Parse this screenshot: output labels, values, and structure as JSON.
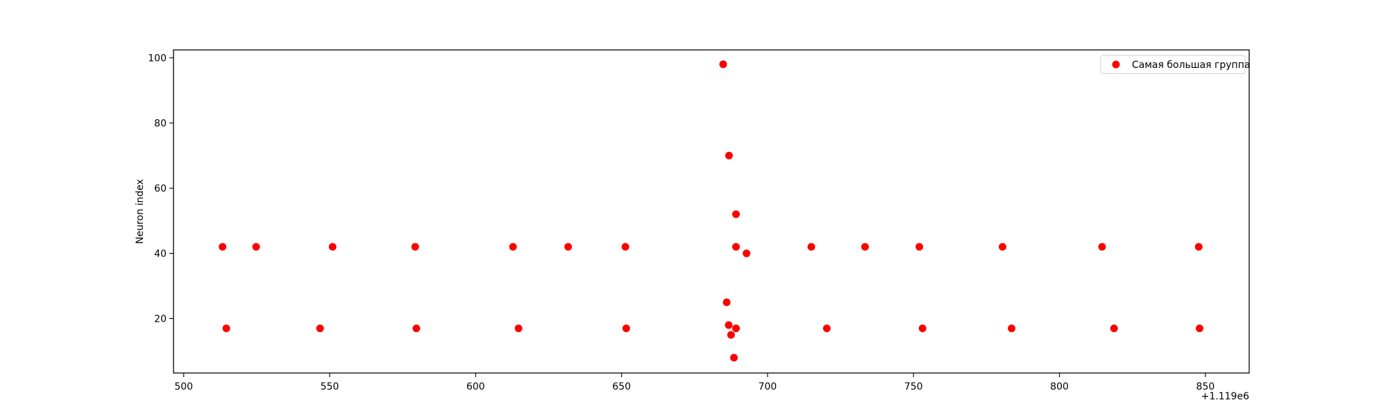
{
  "chart_data": {
    "type": "scatter",
    "title": "",
    "xlabel": "",
    "ylabel": "Neuron index",
    "x_offset": 1119000,
    "x_offset_label": "+1.119e6",
    "xlim": [
      1119496.5,
      1119865
    ],
    "ylim": [
      3.3,
      102.4
    ],
    "x_ticks": [
      1119500,
      1119550,
      1119600,
      1119650,
      1119700,
      1119750,
      1119800,
      1119850
    ],
    "x_tick_labels": [
      "500",
      "550",
      "600",
      "650",
      "700",
      "750",
      "800",
      "850"
    ],
    "y_ticks": [
      20,
      40,
      60,
      80,
      100
    ],
    "y_tick_labels": [
      "20",
      "40",
      "60",
      "80",
      "100"
    ],
    "grid": false,
    "legend_position": "top-right",
    "series": [
      {
        "name": "Самая большая группа",
        "color": "#ff0000",
        "points": [
          {
            "x": 1119513.3,
            "y": 42
          },
          {
            "x": 1119524.8,
            "y": 42
          },
          {
            "x": 1119551.0,
            "y": 42
          },
          {
            "x": 1119579.3,
            "y": 42
          },
          {
            "x": 1119612.8,
            "y": 42
          },
          {
            "x": 1119631.7,
            "y": 42
          },
          {
            "x": 1119651.3,
            "y": 42
          },
          {
            "x": 1119689.2,
            "y": 42
          },
          {
            "x": 1119715.0,
            "y": 42
          },
          {
            "x": 1119733.4,
            "y": 42
          },
          {
            "x": 1119752.0,
            "y": 42
          },
          {
            "x": 1119780.5,
            "y": 42
          },
          {
            "x": 1119814.6,
            "y": 42
          },
          {
            "x": 1119847.7,
            "y": 42
          },
          {
            "x": 1119514.6,
            "y": 17
          },
          {
            "x": 1119546.7,
            "y": 17
          },
          {
            "x": 1119579.7,
            "y": 17
          },
          {
            "x": 1119614.7,
            "y": 17
          },
          {
            "x": 1119651.6,
            "y": 17
          },
          {
            "x": 1119689.2,
            "y": 17
          },
          {
            "x": 1119720.3,
            "y": 17
          },
          {
            "x": 1119753.1,
            "y": 17
          },
          {
            "x": 1119783.6,
            "y": 17
          },
          {
            "x": 1119818.7,
            "y": 17
          },
          {
            "x": 1119848.0,
            "y": 17
          },
          {
            "x": 1119684.8,
            "y": 98
          },
          {
            "x": 1119686.8,
            "y": 70
          },
          {
            "x": 1119689.2,
            "y": 52
          },
          {
            "x": 1119692.8,
            "y": 40
          },
          {
            "x": 1119686.0,
            "y": 25
          },
          {
            "x": 1119686.7,
            "y": 18
          },
          {
            "x": 1119687.5,
            "y": 15
          },
          {
            "x": 1119688.5,
            "y": 8
          }
        ]
      }
    ]
  }
}
